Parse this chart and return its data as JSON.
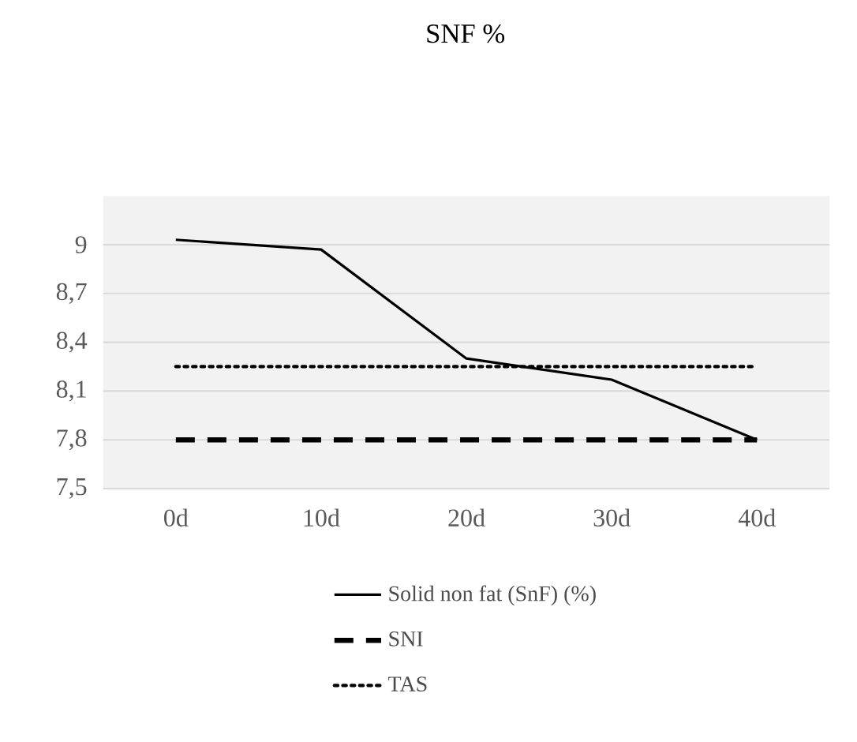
{
  "chart_data": {
    "type": "line",
    "title": "SNF %",
    "categories": [
      "0d",
      "10d",
      "20d",
      "30d",
      "40d"
    ],
    "series": [
      {
        "name": "Solid non fat (SnF) (%)",
        "color": "#000000",
        "line_style": "solid",
        "values": [
          9.03,
          8.97,
          8.3,
          8.17,
          7.8
        ]
      },
      {
        "name": "SNI",
        "color": "#000000",
        "line_style": "dashed",
        "values": [
          7.8,
          7.8,
          7.8,
          7.8,
          7.8
        ]
      },
      {
        "name": "TAS",
        "color": "#000000",
        "line_style": "dotted",
        "values": [
          8.25,
          8.25,
          8.25,
          8.25,
          8.25
        ]
      }
    ],
    "ylim": [
      7.5,
      9.3
    ],
    "yticks": [
      {
        "value": 7.5,
        "label": "7,5"
      },
      {
        "value": 7.8,
        "label": "7,8"
      },
      {
        "value": 8.1,
        "label": "8,1"
      },
      {
        "value": 8.4,
        "label": "8,4"
      },
      {
        "value": 8.7,
        "label": "8,7"
      },
      9
    ],
    "grid": "y",
    "legend": "bottom",
    "marker": "none"
  }
}
